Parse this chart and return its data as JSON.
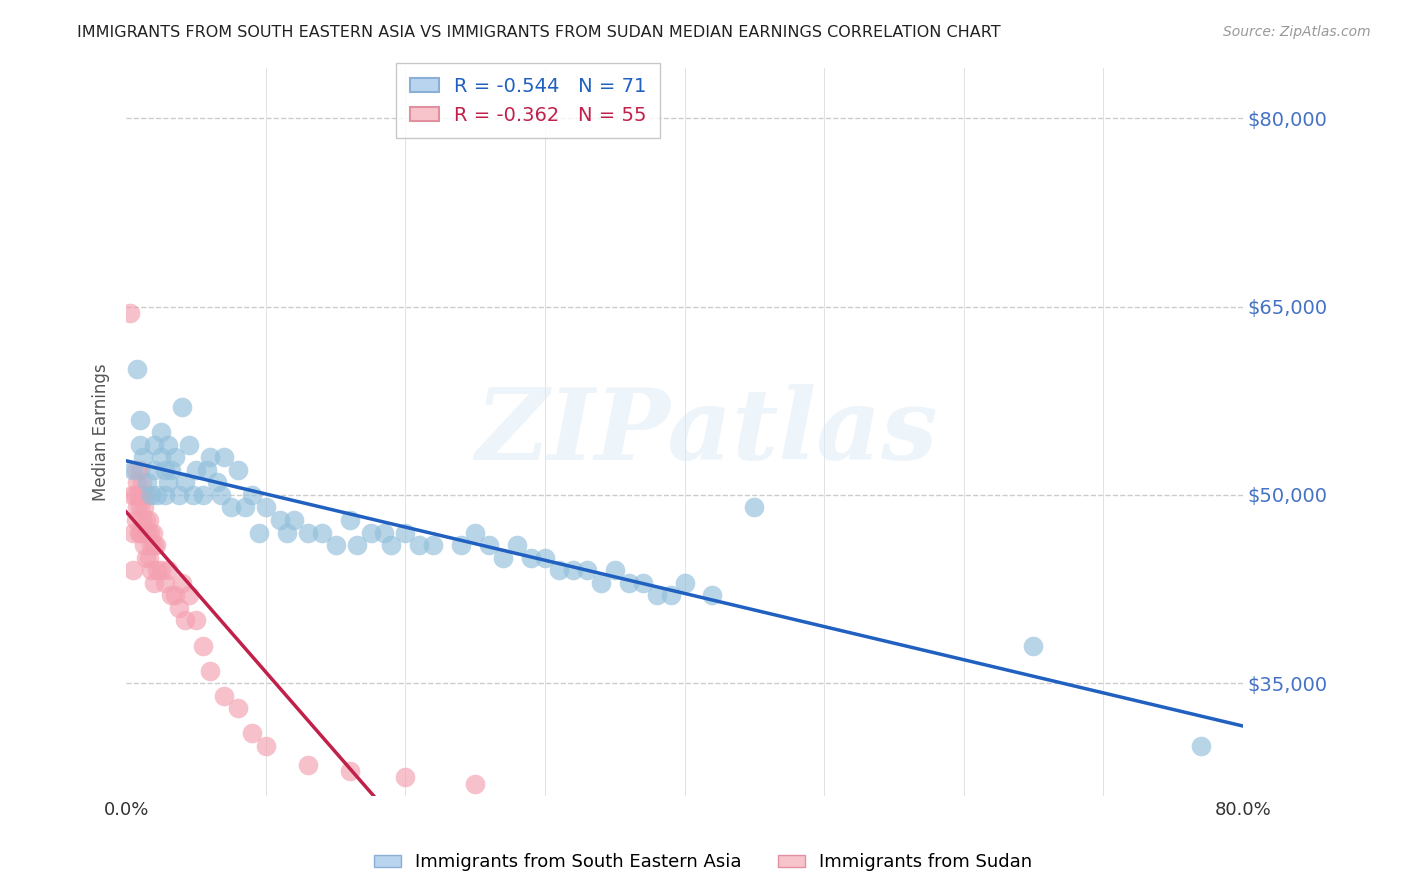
{
  "title": "IMMIGRANTS FROM SOUTH EASTERN ASIA VS IMMIGRANTS FROM SUDAN MEDIAN EARNINGS CORRELATION CHART",
  "source": "Source: ZipAtlas.com",
  "ylabel": "Median Earnings",
  "xlim": [
    0.0,
    0.8
  ],
  "ylim": [
    26000,
    84000
  ],
  "yticks": [
    35000,
    50000,
    65000,
    80000
  ],
  "ytick_labels": [
    "$35,000",
    "$50,000",
    "$65,000",
    "$80,000"
  ],
  "xticks": [
    0.0,
    0.1,
    0.2,
    0.3,
    0.4,
    0.5,
    0.6,
    0.7,
    0.8
  ],
  "xtick_labels": [
    "0.0%",
    "",
    "",
    "",
    "",
    "",
    "",
    "",
    "80.0%"
  ],
  "series1_color": "#91bfdb",
  "series2_color": "#f4a0b0",
  "line1_color": "#2060c0",
  "line2_color": "#c0204a",
  "series1_label": "Immigrants from South Eastern Asia",
  "series2_label": "Immigrants from Sudan",
  "R1": "-0.544",
  "N1": "71",
  "R2": "-0.362",
  "N2": "55",
  "legend_box_color1": "#b8d4ee",
  "legend_box_color2": "#f8c4cc",
  "legend_edge_color1": "#8ab0d8",
  "legend_edge_color2": "#e090a0",
  "watermark": "ZIPatlas",
  "background_color": "#ffffff",
  "grid_color": "#cccccc",
  "title_color": "#222222",
  "right_axis_color": "#4472c4",
  "series1_x": [
    0.005,
    0.008,
    0.01,
    0.01,
    0.012,
    0.015,
    0.018,
    0.02,
    0.02,
    0.022,
    0.025,
    0.025,
    0.028,
    0.028,
    0.03,
    0.03,
    0.032,
    0.035,
    0.038,
    0.04,
    0.042,
    0.045,
    0.048,
    0.05,
    0.055,
    0.058,
    0.06,
    0.065,
    0.068,
    0.07,
    0.075,
    0.08,
    0.085,
    0.09,
    0.095,
    0.1,
    0.11,
    0.115,
    0.12,
    0.13,
    0.14,
    0.15,
    0.16,
    0.165,
    0.175,
    0.185,
    0.19,
    0.2,
    0.21,
    0.22,
    0.24,
    0.25,
    0.26,
    0.27,
    0.28,
    0.29,
    0.3,
    0.31,
    0.32,
    0.33,
    0.34,
    0.35,
    0.36,
    0.37,
    0.38,
    0.39,
    0.4,
    0.42,
    0.45,
    0.65,
    0.77
  ],
  "series1_y": [
    52000,
    60000,
    56000,
    54000,
    53000,
    51000,
    50000,
    54000,
    52000,
    50000,
    55000,
    53000,
    52000,
    50000,
    54000,
    51000,
    52000,
    53000,
    50000,
    57000,
    51000,
    54000,
    50000,
    52000,
    50000,
    52000,
    53000,
    51000,
    50000,
    53000,
    49000,
    52000,
    49000,
    50000,
    47000,
    49000,
    48000,
    47000,
    48000,
    47000,
    47000,
    46000,
    48000,
    46000,
    47000,
    47000,
    46000,
    47000,
    46000,
    46000,
    46000,
    47000,
    46000,
    45000,
    46000,
    45000,
    45000,
    44000,
    44000,
    44000,
    43000,
    44000,
    43000,
    43000,
    42000,
    42000,
    43000,
    42000,
    49000,
    38000,
    30000
  ],
  "series2_x": [
    0.003,
    0.004,
    0.005,
    0.005,
    0.006,
    0.007,
    0.007,
    0.008,
    0.008,
    0.009,
    0.009,
    0.01,
    0.01,
    0.01,
    0.01,
    0.011,
    0.011,
    0.012,
    0.012,
    0.013,
    0.013,
    0.014,
    0.014,
    0.015,
    0.015,
    0.016,
    0.016,
    0.017,
    0.018,
    0.018,
    0.019,
    0.02,
    0.02,
    0.021,
    0.022,
    0.025,
    0.028,
    0.03,
    0.032,
    0.035,
    0.038,
    0.04,
    0.042,
    0.045,
    0.05,
    0.055,
    0.06,
    0.07,
    0.08,
    0.09,
    0.1,
    0.13,
    0.16,
    0.2,
    0.25
  ],
  "series2_y": [
    64500,
    50000,
    47000,
    44000,
    50000,
    52000,
    48000,
    51000,
    49000,
    50000,
    47000,
    52000,
    50000,
    49000,
    47000,
    51000,
    48000,
    50000,
    47000,
    49000,
    46000,
    48000,
    45000,
    50000,
    47000,
    48000,
    45000,
    47000,
    46000,
    44000,
    47000,
    46000,
    43000,
    46000,
    44000,
    44000,
    43000,
    44000,
    42000,
    42000,
    41000,
    43000,
    40000,
    42000,
    40000,
    38000,
    36000,
    34000,
    33000,
    31000,
    30000,
    28500,
    28000,
    27500,
    27000
  ]
}
